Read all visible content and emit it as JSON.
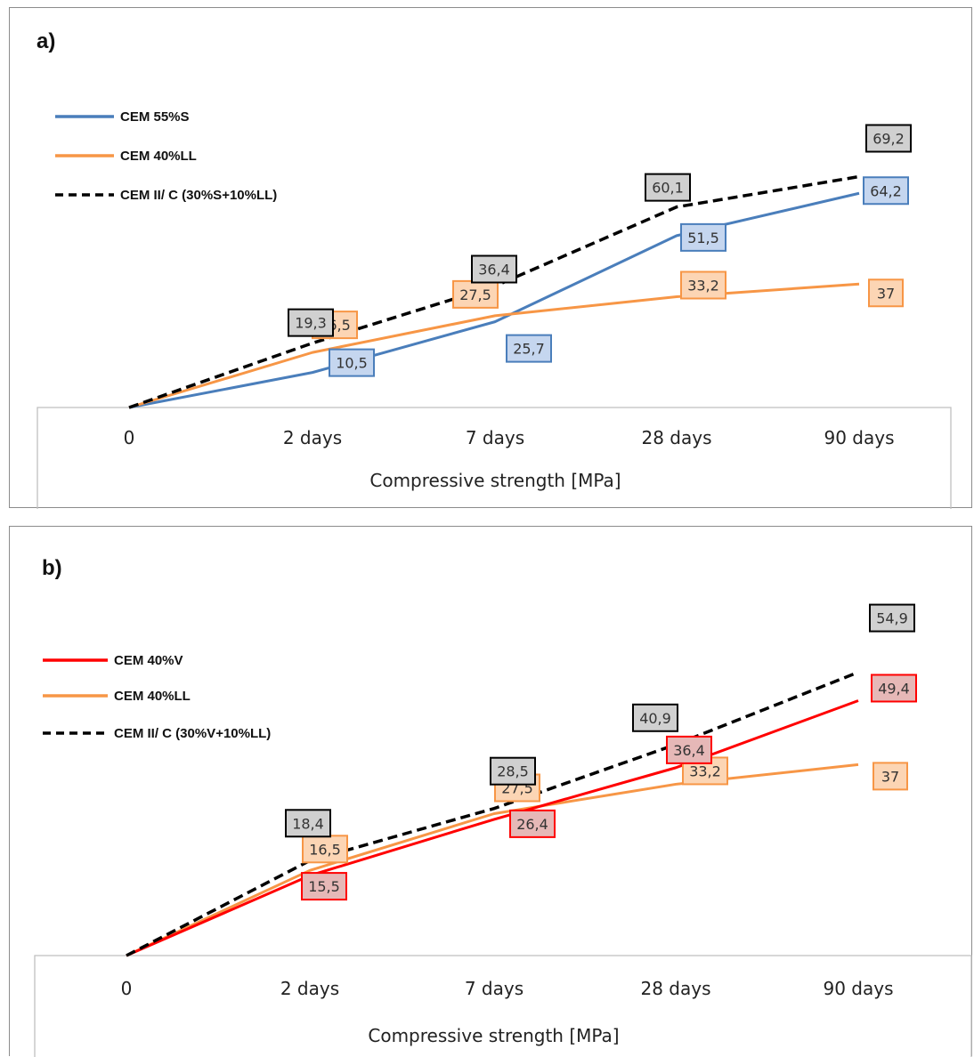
{
  "chart_data": [
    {
      "type": "line",
      "title": "a)",
      "xlabel": "Compressive strength [MPa]",
      "ylabel": "",
      "categories": [
        "0",
        "2 days",
        "7 days",
        "28 days",
        "90 days"
      ],
      "ylim": [
        0,
        80
      ],
      "grid": false,
      "legend_position": "top-left",
      "series": [
        {
          "name": "CEM 55%S",
          "values": [
            0,
            10.5,
            25.7,
            51.5,
            64.2
          ],
          "labels": [
            "",
            "10,5",
            "25,7",
            "51,5",
            "64,2"
          ],
          "color": "#4a7ebb",
          "fill": "#c5d6ef",
          "dash": false
        },
        {
          "name": "CEM 40%LL",
          "values": [
            0,
            16.5,
            27.5,
            33.2,
            37
          ],
          "labels": [
            "",
            "16,5",
            "27,5",
            "33,2",
            "37"
          ],
          "color": "#f79646",
          "fill": "#fcd5b4",
          "dash": false
        },
        {
          "name": "CEM II/ C (30%S+10%LL)",
          "values": [
            0,
            19.3,
            36.4,
            60.1,
            69.2
          ],
          "labels": [
            "",
            "19,3",
            "36,4",
            "60,1",
            "69,2"
          ],
          "color": "#000000",
          "fill": "#d0d0d0",
          "dash": true
        }
      ]
    },
    {
      "type": "line",
      "title": "b)",
      "xlabel": "Compressive strength [MPa]",
      "ylabel": "",
      "categories": [
        "0",
        "2 days",
        "7 days",
        "28 days",
        "90 days"
      ],
      "ylim": [
        0,
        80
      ],
      "grid": false,
      "legend_position": "top-left",
      "series": [
        {
          "name": "CEM 40%V",
          "values": [
            0,
            15.5,
            26.4,
            36.4,
            49.4
          ],
          "labels": [
            "",
            "15,5",
            "26,4",
            "36,4",
            "49,4"
          ],
          "color": "#ff0000",
          "fill": "#e6b8b7",
          "dash": false
        },
        {
          "name": "CEM 40%LL",
          "values": [
            0,
            16.5,
            27.5,
            33.2,
            37
          ],
          "labels": [
            "",
            "16,5",
            "27,5",
            "33,2",
            "37"
          ],
          "color": "#f79646",
          "fill": "#fcd5b4",
          "dash": false
        },
        {
          "name": "CEM II/ C (30%V+10%LL)",
          "values": [
            0,
            18.4,
            28.5,
            40.9,
            54.9
          ],
          "labels": [
            "",
            "18,4",
            "28,5",
            "40,9",
            "54,9"
          ],
          "color": "#000000",
          "fill": "#d0d0d0",
          "dash": true
        }
      ]
    }
  ]
}
